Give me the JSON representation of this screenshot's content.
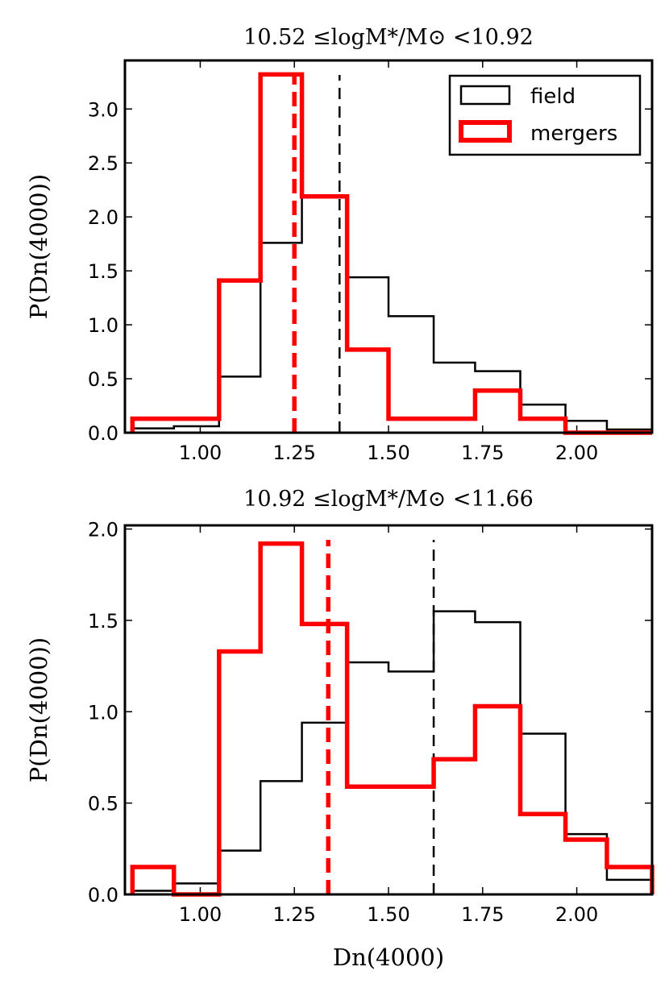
{
  "chart_data": [
    {
      "type": "histogram",
      "title": "10.52 ≤logM*/M⊙ <10.92",
      "xlabel": "",
      "ylabel": "P(Dn(4000))",
      "xlim": [
        0.8,
        2.2
      ],
      "ylim": [
        0.0,
        3.45
      ],
      "xticks": [
        "1.00",
        "1.25",
        "1.50",
        "1.75",
        "2.00"
      ],
      "yticks": [
        "0.0",
        "0.5",
        "1.0",
        "1.5",
        "2.0",
        "2.5",
        "3.0"
      ],
      "bin_edges": [
        0.82,
        0.93,
        1.05,
        1.16,
        1.27,
        1.39,
        1.5,
        1.62,
        1.73,
        1.85,
        1.97,
        2.08,
        2.2
      ],
      "legend": [
        "field",
        "mergers"
      ],
      "legend_position": "upper right",
      "series": [
        {
          "name": "field",
          "color": "#000000",
          "values": [
            0.04,
            0.06,
            0.52,
            1.76,
            2.19,
            1.44,
            1.08,
            0.65,
            0.57,
            0.26,
            0.11,
            0.03
          ],
          "median": 1.37
        },
        {
          "name": "mergers",
          "color": "#ff0000",
          "values": [
            0.13,
            0.13,
            1.41,
            3.32,
            2.19,
            0.77,
            0.13,
            0.13,
            0.39,
            0.13,
            0.0,
            0.0
          ],
          "median": 1.25
        }
      ]
    },
    {
      "type": "histogram",
      "title": "10.92 ≤logM*/M⊙ <11.66",
      "xlabel": "Dn(4000)",
      "ylabel": "P(Dn(4000))",
      "xlim": [
        0.8,
        2.2
      ],
      "ylim": [
        0.0,
        2.02
      ],
      "xticks": [
        "1.00",
        "1.25",
        "1.50",
        "1.75",
        "2.00"
      ],
      "yticks": [
        "0.0",
        "0.5",
        "1.0",
        "1.5",
        "2.0"
      ],
      "bin_edges": [
        0.82,
        0.93,
        1.05,
        1.16,
        1.27,
        1.39,
        1.5,
        1.62,
        1.73,
        1.85,
        1.97,
        2.08,
        2.2
      ],
      "series": [
        {
          "name": "field",
          "color": "#000000",
          "values": [
            0.02,
            0.06,
            0.24,
            0.62,
            0.94,
            1.27,
            1.22,
            1.55,
            1.49,
            0.88,
            0.33,
            0.08
          ],
          "median": 1.62
        },
        {
          "name": "mergers",
          "color": "#ff0000",
          "values": [
            0.15,
            0.0,
            1.33,
            1.92,
            1.48,
            0.59,
            0.59,
            0.74,
            1.03,
            0.44,
            0.3,
            0.15
          ],
          "median": 1.34
        }
      ]
    }
  ]
}
